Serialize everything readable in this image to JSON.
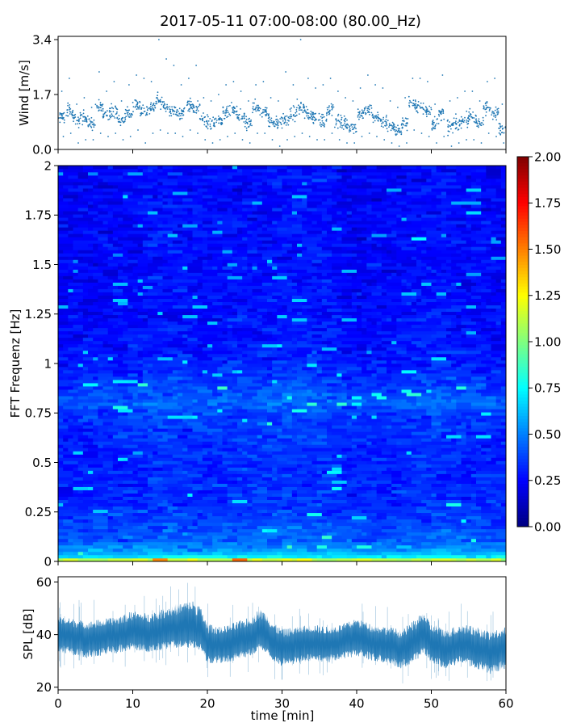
{
  "chart_data": [
    {
      "type": "scatter",
      "title": "2017-05-11 07:00-08:00 (80.00_Hz)",
      "xlabel": "",
      "ylabel": "Wind [m/s]",
      "xlim": [
        0,
        60
      ],
      "ylim": [
        0.0,
        3.5
      ],
      "yticks": [
        "0.0",
        "1.7",
        "3.4"
      ],
      "color": "#1f77b4",
      "series": [
        {
          "x": [
            0.5,
            1.5,
            2.5,
            3.5,
            4.5,
            5.5,
            6.5,
            7.5,
            8.5,
            9.5,
            10.5,
            11.5,
            12.5,
            13.5,
            14.5,
            15.5,
            16.5,
            17.5,
            18.5,
            19.5,
            20.5,
            21.5,
            22.5,
            23.5,
            24.5,
            25.5,
            26.5,
            27.5,
            28.5,
            29.5,
            30.5,
            31.5,
            32.5,
            33.5,
            34.5,
            35.5,
            36.5,
            37.5,
            38.5,
            39.5,
            40.5,
            41.5,
            42.5,
            43.5,
            44.5,
            45.5,
            46.5,
            47.5,
            48.5,
            49.5,
            50.5,
            51.5,
            52.5,
            53.5,
            54.5,
            55.5,
            56.5,
            57.5,
            58.5,
            59.5
          ],
          "y": [
            1.0,
            1.2,
            0.9,
            1.0,
            0.8,
            1.3,
            1.1,
            1.2,
            0.9,
            1.1,
            1.4,
            1.2,
            1.3,
            1.5,
            1.3,
            1.2,
            1.1,
            1.4,
            1.3,
            0.9,
            0.8,
            0.9,
            1.1,
            1.2,
            1.0,
            0.8,
            1.3,
            1.2,
            0.9,
            0.8,
            0.9,
            1.1,
            1.3,
            1.1,
            1.0,
            0.9,
            1.2,
            0.9,
            0.8,
            0.7,
            1.1,
            1.2,
            1.0,
            0.9,
            0.7,
            0.6,
            0.8,
            1.4,
            1.3,
            1.2,
            0.8,
            1.1,
            0.7,
            0.8,
            0.9,
            1.0,
            0.8,
            1.3,
            1.1,
            0.7
          ],
          "max": [
            1.8,
            2.2,
            1.4,
            1.6,
            1.3,
            2.4,
            1.8,
            2.1,
            1.5,
            2.0,
            2.3,
            2.2,
            2.1,
            3.4,
            2.8,
            2.6,
            2.0,
            2.2,
            2.6,
            1.6,
            1.5,
            1.7,
            2.0,
            2.1,
            1.8,
            1.5,
            2.0,
            2.1,
            1.6,
            1.5,
            2.4,
            2.0,
            3.4,
            2.2,
            1.9,
            2.0,
            2.2,
            1.8,
            1.6,
            1.5,
            1.9,
            2.3,
            2.0,
            1.9,
            1.5,
            1.3,
            1.6,
            2.2,
            2.2,
            2.1,
            1.4,
            2.3,
            1.5,
            1.6,
            1.8,
            1.8,
            1.5,
            2.1,
            2.2,
            1.4
          ],
          "min": [
            0.4,
            0.5,
            0.2,
            0.3,
            0.3,
            0.5,
            0.4,
            0.5,
            0.3,
            0.4,
            0.6,
            0.2,
            0.5,
            0.6,
            0.5,
            0.5,
            0.4,
            0.6,
            0.5,
            0.3,
            0.2,
            0.3,
            0.4,
            0.5,
            0.3,
            0.2,
            0.5,
            0.5,
            0.3,
            0.1,
            0.3,
            0.4,
            0.5,
            0.4,
            0.3,
            0.3,
            0.5,
            0.3,
            0.2,
            0.2,
            0.4,
            0.5,
            0.4,
            0.3,
            0.2,
            0.1,
            0.2,
            0.6,
            0.5,
            0.4,
            0.2,
            0.4,
            0.1,
            0.2,
            0.3,
            0.3,
            0.2,
            0.5,
            0.4,
            0.2
          ]
        }
      ]
    },
    {
      "type": "heatmap",
      "xlabel": "",
      "ylabel": "FFT Frequenz [Hz]",
      "xlim": [
        0,
        60
      ],
      "ylim": [
        0,
        2
      ],
      "yticks": [
        "0",
        "0.25",
        "0.5",
        "0.75",
        "1",
        "1.25",
        "1.5",
        "1.75",
        "2"
      ],
      "colormap": "jet",
      "colorbar": {
        "range": [
          0.0,
          2.0
        ],
        "ticks": [
          "0.00",
          "0.25",
          "0.50",
          "0.75",
          "1.00",
          "1.25",
          "1.50",
          "1.75",
          "2.00"
        ]
      },
      "profile": {
        "frequency_hz": [
          0.0,
          0.02,
          0.05,
          0.1,
          0.2,
          0.3,
          0.5,
          0.75,
          0.8,
          0.85,
          1.0,
          1.25,
          1.5,
          1.75,
          2.0
        ],
        "mean_level": [
          1.4,
          0.75,
          0.55,
          0.45,
          0.38,
          0.33,
          0.32,
          0.36,
          0.45,
          0.4,
          0.3,
          0.27,
          0.26,
          0.26,
          0.25
        ]
      },
      "time_profile": {
        "time_min": [
          0,
          5,
          10,
          15,
          20,
          25,
          30,
          35,
          40,
          45,
          50,
          55,
          60
        ],
        "mean_level": [
          0.3,
          0.3,
          0.32,
          0.34,
          0.32,
          0.33,
          0.35,
          0.34,
          0.3,
          0.31,
          0.34,
          0.32,
          0.3
        ]
      }
    },
    {
      "type": "line",
      "xlabel": "time [min]",
      "ylabel": "SPL [dB]",
      "xlim": [
        0,
        60
      ],
      "ylim": [
        19,
        62
      ],
      "xticks": [
        "0",
        "10",
        "20",
        "30",
        "40",
        "50",
        "60"
      ],
      "yticks": [
        "20",
        "40",
        "60"
      ],
      "color": "#1f77b4",
      "series": [
        {
          "x": [
            0,
            2,
            4,
            6,
            8,
            10,
            12,
            14,
            16,
            18,
            19,
            20,
            22,
            24,
            26,
            27,
            28,
            29,
            30,
            32,
            34,
            36,
            38,
            40,
            42,
            44,
            46,
            48,
            49,
            50,
            52,
            54,
            56,
            58,
            60
          ],
          "mean": [
            40,
            39,
            38,
            39,
            40,
            41,
            40,
            41,
            42,
            42,
            41,
            36,
            36,
            37,
            39,
            41,
            40,
            36,
            35,
            36,
            37,
            36,
            37,
            39,
            37,
            36,
            34,
            37,
            40,
            36,
            34,
            36,
            35,
            33,
            35
          ],
          "upper": [
            47,
            46,
            45,
            46,
            47,
            49,
            48,
            50,
            52,
            53,
            51,
            44,
            43,
            45,
            47,
            50,
            48,
            44,
            42,
            43,
            44,
            43,
            44,
            46,
            44,
            43,
            42,
            46,
            49,
            44,
            42,
            44,
            43,
            41,
            43
          ],
          "lower": [
            33,
            32,
            31,
            32,
            33,
            34,
            33,
            34,
            35,
            35,
            34,
            29,
            29,
            30,
            32,
            34,
            33,
            29,
            28,
            29,
            30,
            29,
            30,
            32,
            30,
            29,
            27,
            30,
            33,
            29,
            27,
            29,
            27,
            25,
            27
          ]
        }
      ]
    }
  ]
}
